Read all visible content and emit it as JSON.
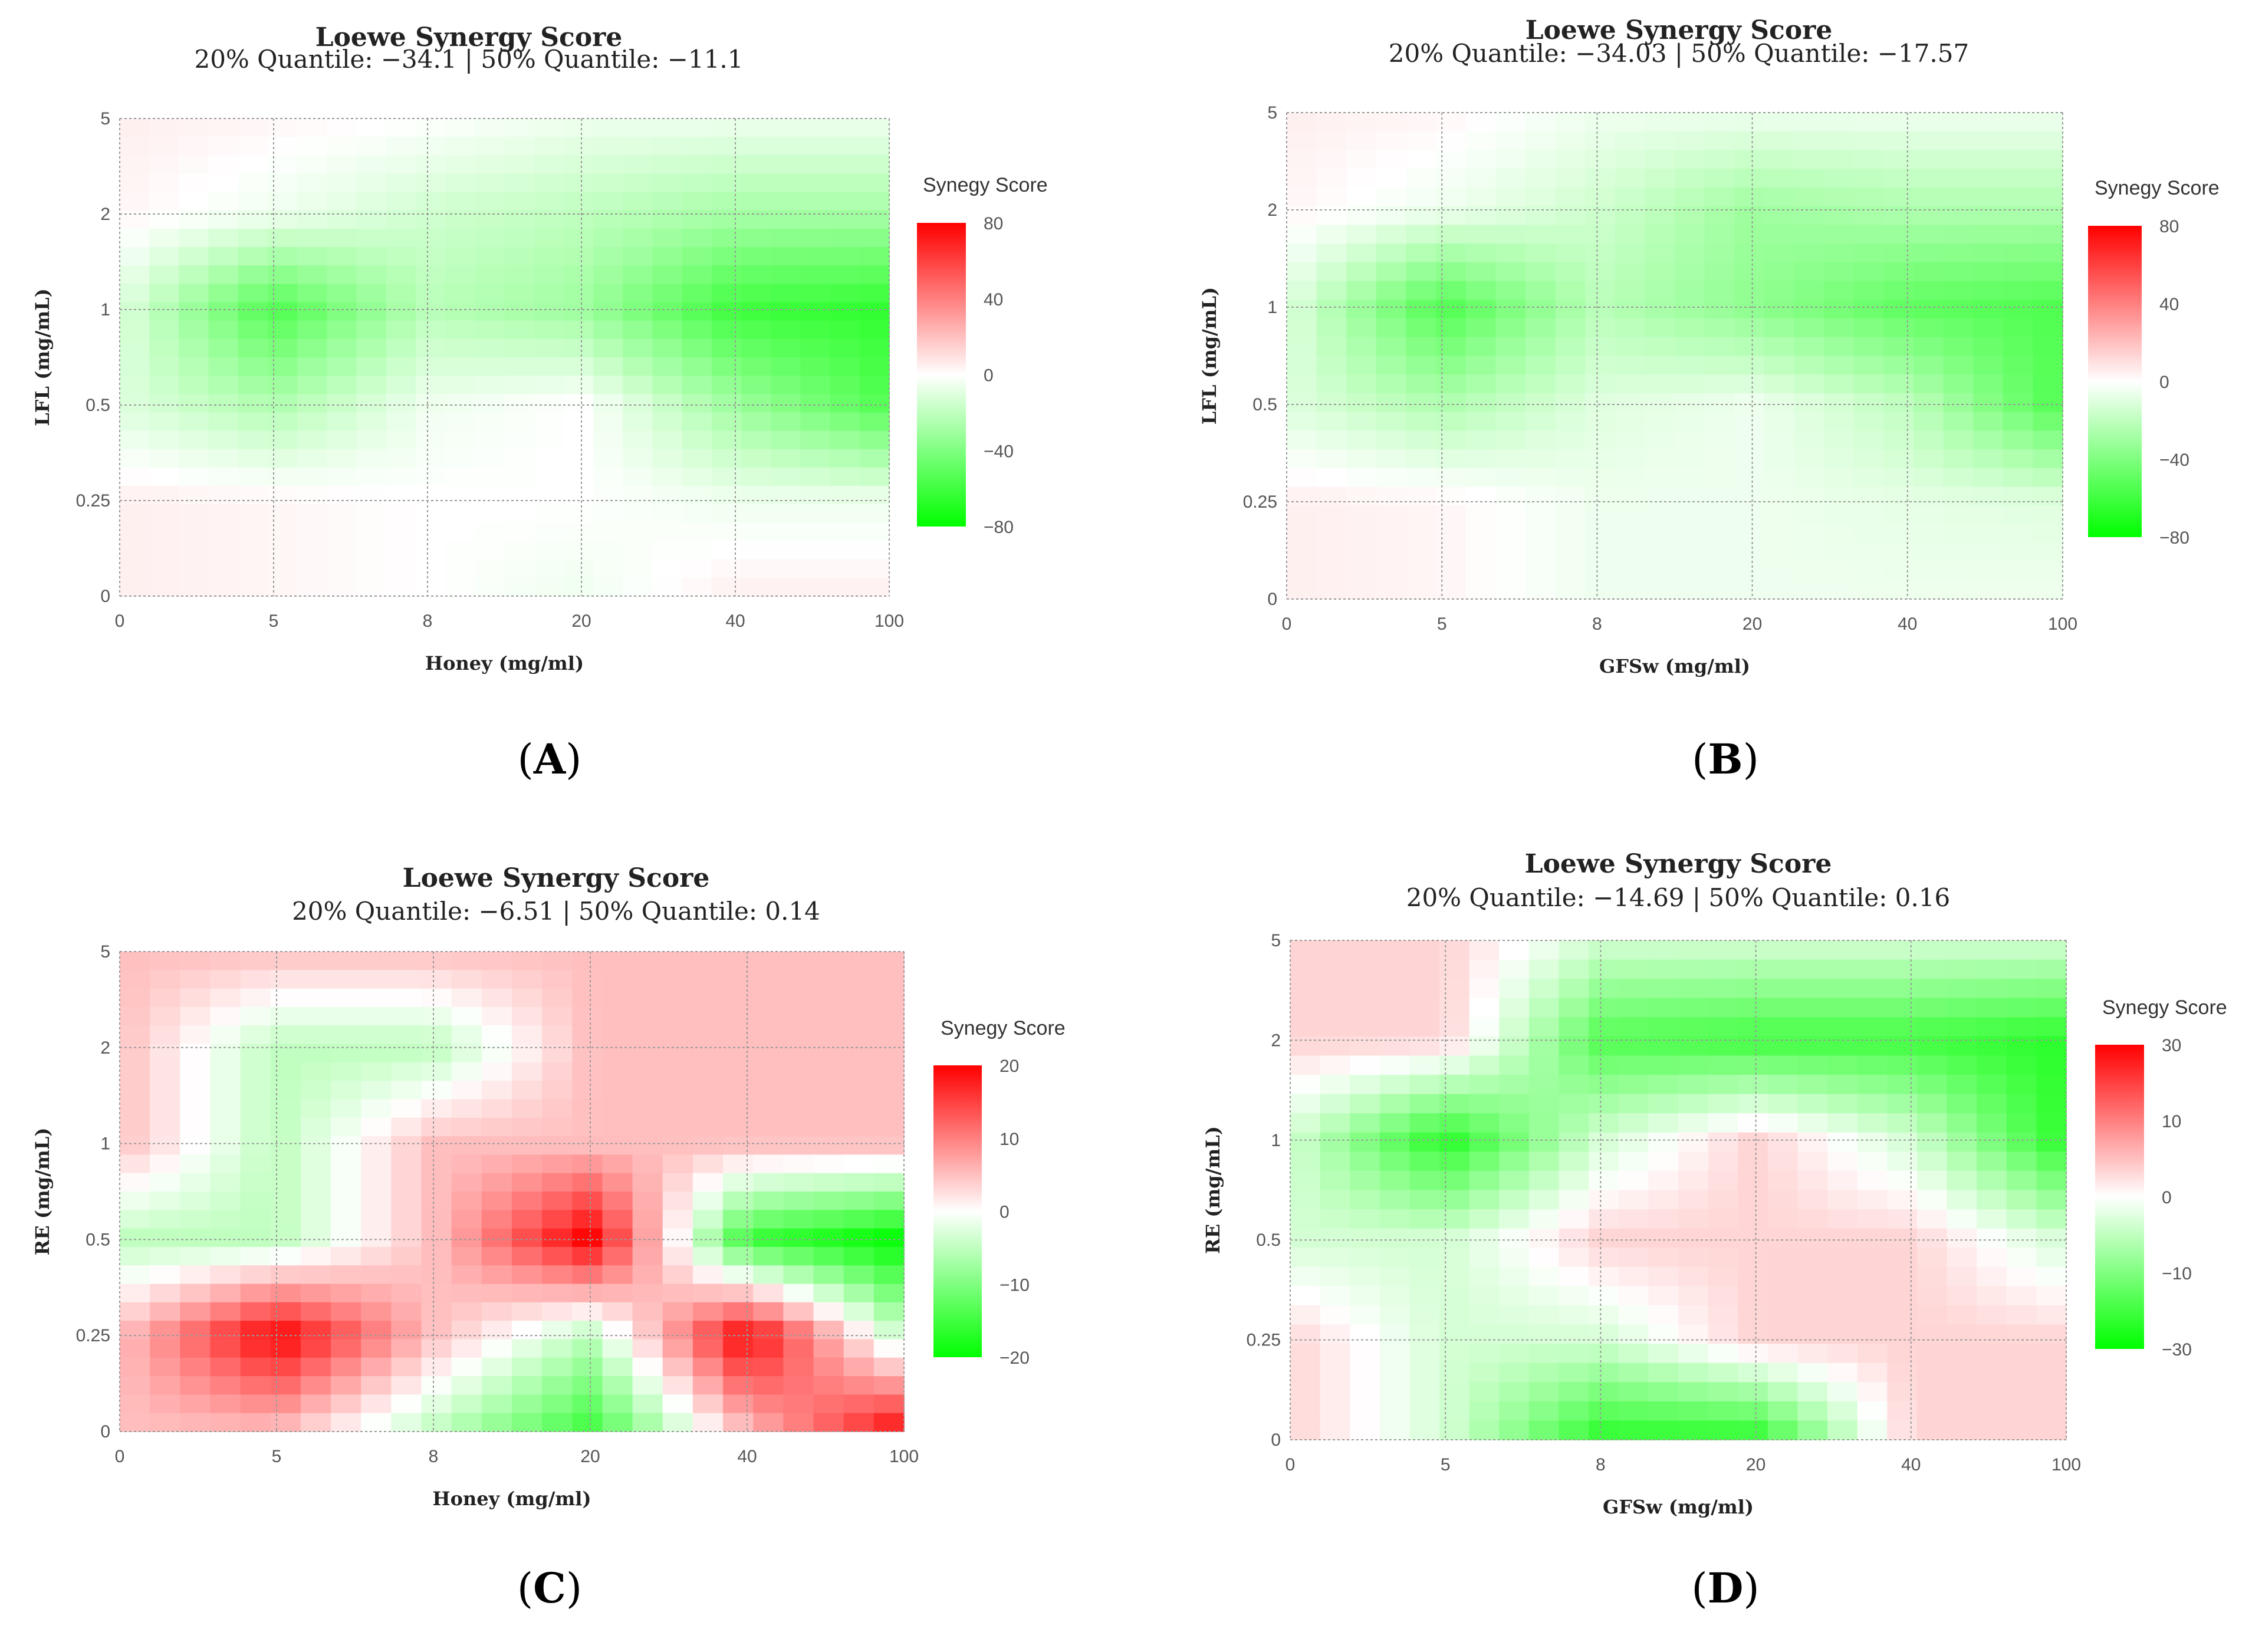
{
  "figure": {
    "panel_labels": [
      "A",
      "B",
      "C",
      "D"
    ]
  },
  "colors": {
    "green": "#00ff00",
    "white": "#ffffff",
    "red": "#ff0000",
    "grid": "#999999"
  },
  "chart_data": [
    {
      "panel": "A",
      "type": "heatmap",
      "title": "Loewe Synergy Score",
      "subtitle": "20% Quantile: −34.1 | 50% Quantile: −11.1",
      "xlabel": "Honey (mg/ml)",
      "ylabel": "LFL (mg/mL)",
      "x_ticks": [
        "0",
        "5",
        "8",
        "20",
        "40",
        "100"
      ],
      "y_ticks": [
        "0",
        "0.25",
        "0.5",
        "1",
        "2",
        "5"
      ],
      "legend_title": "Synegy Score",
      "legend_ticks": [
        "80",
        "40",
        "0",
        "−40",
        "−80"
      ],
      "vmin": -80,
      "vmax": 80,
      "z": [
        [
          5,
          3,
          0,
          -5,
          -5,
          -5
        ],
        [
          3,
          -5,
          -15,
          -20,
          -28,
          -28
        ],
        [
          -10,
          -55,
          -22,
          -30,
          -60,
          -65
        ],
        [
          -10,
          -25,
          -5,
          0,
          -30,
          -55
        ],
        [
          5,
          3,
          0,
          0,
          -5,
          -5
        ],
        [
          5,
          3,
          0,
          -5,
          5,
          5
        ]
      ]
    },
    {
      "panel": "B",
      "type": "heatmap",
      "title": "Loewe Synergy Score",
      "subtitle": "20% Quantile: −34.03 | 50% Quantile: −17.57",
      "xlabel": "GFSw (mg/ml)",
      "ylabel": "LFL (mg/mL)",
      "x_ticks": [
        "0",
        "5",
        "8",
        "20",
        "40",
        "100"
      ],
      "y_ticks": [
        "0",
        "0.25",
        "0.5",
        "1",
        "2",
        "5"
      ],
      "legend_title": "Synegy Score",
      "legend_ticks": [
        "80",
        "40",
        "0",
        "−40",
        "−80"
      ],
      "vmin": -80,
      "vmax": 80,
      "z": [
        [
          5,
          3,
          -5,
          -5,
          -5,
          -5
        ],
        [
          3,
          -5,
          -15,
          -30,
          -25,
          -25
        ],
        [
          -10,
          -55,
          -22,
          -35,
          -50,
          -55
        ],
        [
          -10,
          -25,
          -10,
          -5,
          -20,
          -55
        ],
        [
          5,
          3,
          -5,
          -5,
          -8,
          -10
        ],
        [
          5,
          3,
          -5,
          -5,
          -5,
          -5
        ]
      ]
    },
    {
      "panel": "C",
      "type": "heatmap",
      "title": "Loewe Synergy Score",
      "subtitle": "20% Quantile: −6.51 | 50% Quantile: 0.14",
      "xlabel": "Honey (mg/ml)",
      "ylabel": "RE (mg/mL)",
      "x_ticks": [
        "0",
        "5",
        "8",
        "20",
        "40",
        "100"
      ],
      "y_ticks": [
        "0",
        "0.25",
        "0.5",
        "1",
        "2",
        "5"
      ],
      "legend_title": "Synegy Score",
      "legend_ticks": [
        "20",
        "10",
        "0",
        "−10",
        "−20"
      ],
      "vmin": -20,
      "vmax": 20,
      "z": [
        [
          5,
          5,
          5,
          5,
          5,
          5
        ],
        [
          5,
          -5,
          -5,
          5,
          5,
          5
        ],
        [
          5,
          -5,
          5,
          5,
          5,
          5
        ],
        [
          -5,
          -5,
          5,
          20,
          -15,
          -20
        ],
        [
          5,
          20,
          5,
          -5,
          20,
          -5
        ],
        [
          5,
          5,
          -5,
          -15,
          5,
          20
        ]
      ]
    },
    {
      "panel": "D",
      "type": "heatmap",
      "title": "Loewe Synergy Score",
      "subtitle": "20% Quantile: −14.69 | 50% Quantile: 0.16",
      "xlabel": "GFSw (mg/ml)",
      "ylabel": "RE (mg/mL)",
      "x_ticks": [
        "0",
        "5",
        "8",
        "20",
        "40",
        "100"
      ],
      "y_ticks": [
        "0",
        "0.25",
        "0.5",
        "1",
        "2",
        "5"
      ],
      "legend_title": "Synegy Score",
      "legend_ticks": [
        "30",
        "10",
        "0",
        "−10",
        "−30"
      ],
      "vmin": -30,
      "vmax": 30,
      "z": [
        [
          5,
          5,
          -5,
          -5,
          -5,
          -5
        ],
        [
          5,
          5,
          -20,
          -22,
          -22,
          -25
        ],
        [
          -5,
          -25,
          -5,
          5,
          -5,
          -25
        ],
        [
          -5,
          -5,
          5,
          5,
          5,
          -5
        ],
        [
          5,
          -5,
          -5,
          5,
          5,
          5
        ],
        [
          5,
          -5,
          -25,
          -25,
          5,
          5
        ]
      ]
    }
  ]
}
